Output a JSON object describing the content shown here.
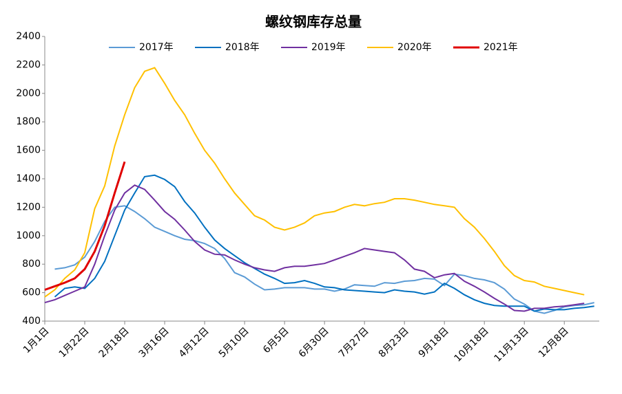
{
  "chart_data": {
    "type": "line",
    "title": "螺纹钢库存总量",
    "categories": [
      "1月1日",
      null,
      null,
      null,
      "1月22日",
      null,
      null,
      null,
      "2月18日",
      null,
      null,
      null,
      "3月16日",
      null,
      null,
      null,
      "4月12日",
      null,
      null,
      null,
      "5月10日",
      null,
      null,
      null,
      "6月5日",
      null,
      null,
      null,
      "6月30日",
      null,
      null,
      null,
      "7月27日",
      null,
      null,
      null,
      "8月23日",
      null,
      null,
      null,
      "9月18日",
      null,
      null,
      null,
      "10月18日",
      null,
      null,
      null,
      "11月13日",
      null,
      null,
      null,
      "12月8日",
      null,
      null,
      null
    ],
    "series": [
      {
        "name": "2017年",
        "color": "#5b9bd5",
        "values": [
          null,
          765,
          775,
          795,
          850,
          960,
          1100,
          1200,
          1210,
          1170,
          1120,
          1060,
          1030,
          1000,
          975,
          965,
          945,
          910,
          840,
          740,
          710,
          660,
          620,
          625,
          635,
          635,
          635,
          625,
          625,
          610,
          625,
          655,
          650,
          645,
          670,
          665,
          680,
          685,
          700,
          695,
          650,
          730,
          720,
          700,
          690,
          670,
          625,
          555,
          520,
          470,
          455,
          475,
          500,
          510,
          515,
          530
        ]
      },
      {
        "name": "2018年",
        "color": "#0070c0",
        "values": [
          null,
          570,
          630,
          640,
          630,
          700,
          820,
          1000,
          1180,
          1300,
          1415,
          1425,
          1395,
          1345,
          1240,
          1160,
          1060,
          970,
          910,
          860,
          810,
          770,
          730,
          700,
          665,
          670,
          685,
          665,
          640,
          635,
          620,
          615,
          610,
          605,
          600,
          620,
          610,
          605,
          590,
          605,
          665,
          630,
          585,
          550,
          525,
          510,
          505,
          505,
          505,
          470,
          485,
          480,
          480,
          490,
          495,
          505
        ]
      },
      {
        "name": "2019年",
        "color": "#7030a0",
        "values": [
          530,
          550,
          580,
          610,
          640,
          800,
          1000,
          1180,
          1300,
          1355,
          1325,
          1250,
          1170,
          1115,
          1040,
          960,
          900,
          870,
          865,
          830,
          800,
          775,
          760,
          750,
          775,
          785,
          785,
          795,
          805,
          830,
          855,
          880,
          910,
          900,
          890,
          880,
          830,
          765,
          750,
          705,
          725,
          735,
          680,
          645,
          605,
          560,
          520,
          475,
          470,
          490,
          490,
          500,
          505,
          515,
          525,
          null
        ]
      },
      {
        "name": "2020年",
        "color": "#ffc000",
        "values": [
          570,
          620,
          700,
          760,
          880,
          1190,
          1350,
          1630,
          1850,
          2040,
          2155,
          2180,
          2070,
          1950,
          1850,
          1720,
          1600,
          1510,
          1400,
          1300,
          1220,
          1140,
          1110,
          1060,
          1040,
          1060,
          1090,
          1140,
          1160,
          1170,
          1200,
          1220,
          1210,
          1225,
          1235,
          1260,
          1260,
          1250,
          1235,
          1220,
          1210,
          1200,
          1120,
          1060,
          980,
          890,
          790,
          720,
          685,
          675,
          645,
          630,
          615,
          600,
          585,
          null
        ]
      },
      {
        "name": "2021年",
        "color": "#e00000",
        "values": [
          620,
          645,
          670,
          700,
          765,
          890,
          1070,
          1300,
          1520,
          null,
          null,
          null,
          null,
          null,
          null,
          null,
          null,
          null,
          null,
          null,
          null,
          null,
          null,
          null,
          null,
          null,
          null,
          null,
          null,
          null,
          null,
          null,
          null,
          null,
          null,
          null,
          null,
          null,
          null,
          null,
          null,
          null,
          null,
          null,
          null,
          null,
          null,
          null,
          null,
          null,
          null,
          null,
          null,
          null,
          null,
          null
        ]
      }
    ],
    "ylim": [
      400,
      2400
    ],
    "yticks": [
      400,
      600,
      800,
      1000,
      1200,
      1400,
      1600,
      1800,
      2000,
      2200,
      2400
    ],
    "grid": false,
    "legend": "top"
  }
}
